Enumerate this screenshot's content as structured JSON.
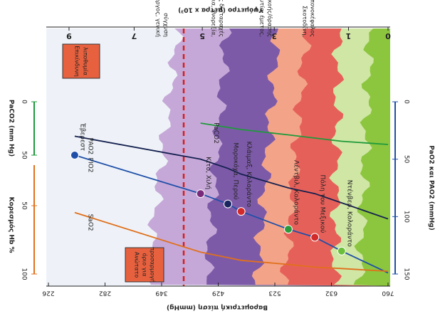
{
  "chart_data": {
    "type": "line",
    "title": "Βαρομετρική πίεση (mmHg)",
    "x_label": "Βαρομετρική πίεση (mmHg)",
    "x2_label": "Υψόμετρο (μέτρα x 10³)",
    "y_label": "PaO2 και PAO2 (mmHg)",
    "y2_label": "Κορεσμός Hb %",
    "y3_label": "PaCO2 (mm Hg)",
    "xlim": [
      226,
      760
    ],
    "xticks": [
      226,
      282,
      349,
      429,
      523,
      632,
      760
    ],
    "x2ticks": [
      9,
      7,
      5,
      3,
      1,
      0
    ],
    "ylim": [
      0,
      150
    ],
    "yticks": [
      0,
      50,
      100,
      150
    ],
    "y2lim": [
      0,
      100
    ],
    "y2ticks": [
      50,
      100
    ],
    "y3lim": [
      0,
      50
    ],
    "y3ticks": [
      0,
      50
    ],
    "x": [
      252,
      404,
      445,
      467,
      549,
      600,
      655,
      760
    ],
    "series": [
      {
        "name": "PIO2",
        "color": "#1f4fa8",
        "axis": "y",
        "values": [
          46.5,
          80,
          89,
          95.5,
          111,
          118,
          130,
          149
        ]
      },
      {
        "name": "PAO2",
        "color": "#14204f",
        "axis": "y",
        "values": [
          30,
          50,
          58,
          63,
          75,
          80,
          88,
          102
        ]
      },
      {
        "name": "PaCO2",
        "color": "#1e9a3a",
        "axis": "y3",
        "values": [
          null,
          20,
          24,
          26,
          31,
          34,
          37,
          40
        ]
      },
      {
        "name": "SaO2",
        "color": "#e0701c",
        "axis": "y2",
        "values": [
          55,
          84,
          88,
          90,
          93,
          95,
          96,
          98
        ]
      }
    ],
    "places": [
      {
        "text": "Έβερεστ",
        "x": 252,
        "y": 46.5,
        "color": "#1f4fa8"
      },
      {
        "text": "Κίτο, Χιλή",
        "x": 404,
        "y": 80,
        "color": "#7a2a7a"
      },
      {
        "text": "Μοροκόχα, Περού",
        "x": 445,
        "y": 89,
        "color": "#1a2560"
      },
      {
        "text": "Κλάιμαξ, Κολοράντο",
        "x": 467,
        "y": 95.5,
        "color": "#d22a2a"
      },
      {
        "text": "Λέντβιλ, Κολοράντο",
        "x": 549,
        "y": 111,
        "color": "#2b9a3a"
      },
      {
        "text": "Πόλη του Μεξικού",
        "x": 600,
        "y": 118,
        "color": "#d22a2a"
      },
      {
        "text": "Ντένβερ, Κολοράντο",
        "x": 655,
        "y": 130,
        "color": "#6cbf3a"
      }
    ],
    "zones": [
      [
        "Λήθαργος, γενική",
        "σύγχυση"
      ],
      [
        "Δύσπνοια, ανορεξία,",
        "γαστρεντερικές διαταραχές"
      ],
      [
        "Αϋπνία, ναυτία, έμετος,",
        "διαταραχές ακοής/όρασης"
      ],
      [
        "Σκοτοδίνη,",
        "πονοκέφαλος"
      ]
    ],
    "box_top": [
      "Επικίνδυνη",
      "λιποθυμία"
    ],
    "box_bottom": [
      "Ανώτατο",
      "όριο για",
      "προσαρμογή"
    ]
  }
}
